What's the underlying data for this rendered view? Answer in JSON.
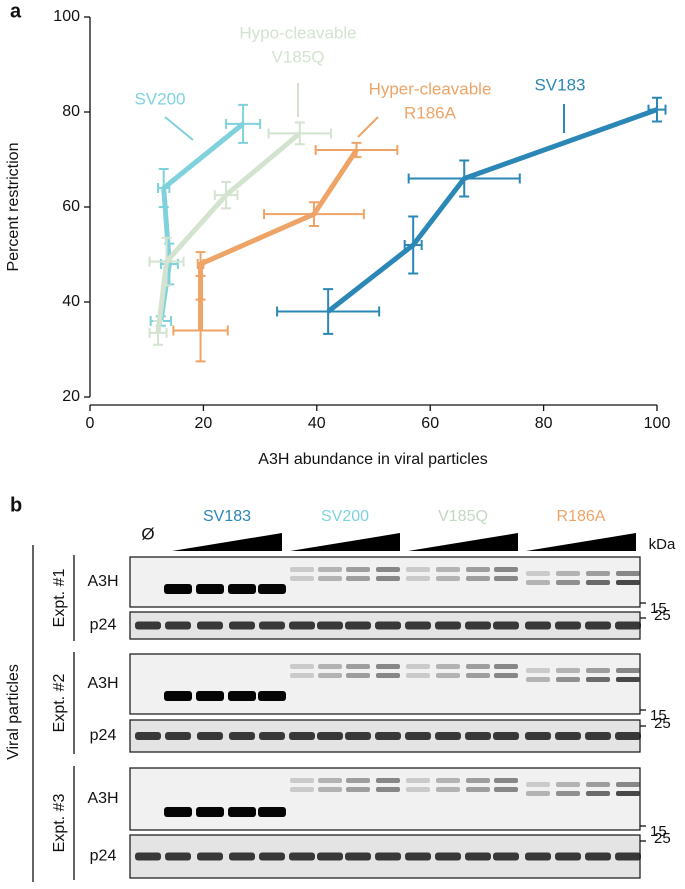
{
  "panel_label": "a",
  "chart_data": {
    "type": "line",
    "x_label": "A3H abundance in viral particles",
    "y_label": "Percent restriction",
    "xlim": [
      0,
      100
    ],
    "xticks": [
      0,
      20,
      40,
      60,
      80,
      100
    ],
    "ylim": [
      20,
      100
    ],
    "yticks": [
      20,
      40,
      60,
      80,
      100
    ],
    "annotations": [
      "Hypo-cleavable",
      "Hyper-cleavable"
    ],
    "series": [
      {
        "name": "SV183",
        "color": "#2b87b5",
        "x": [
          42,
          57,
          66,
          100
        ],
        "values": [
          38,
          52,
          66,
          80.5
        ],
        "x_err": [
          9,
          1.5,
          9.8,
          1.5
        ],
        "y_err": [
          4.7,
          6,
          3.8,
          2.5
        ]
      },
      {
        "name": "SV200",
        "color": "#7fd2dc",
        "x": [
          12.5,
          14,
          13,
          27
        ],
        "values": [
          36,
          48,
          64,
          77.5
        ],
        "x_err": [
          1.8,
          1.5,
          1,
          3
        ],
        "y_err": [
          1,
          4.3,
          4,
          4
        ]
      },
      {
        "name": "V185Q",
        "color": "#d3e3d0",
        "x": [
          12,
          13.5,
          24,
          37
        ],
        "values": [
          33.5,
          48.5,
          62.5,
          75.5
        ],
        "x_err": [
          1.5,
          3,
          2,
          5.5
        ],
        "y_err": [
          2.5,
          5,
          2.8,
          2.3
        ]
      },
      {
        "name": "R186A",
        "color": "#eea467",
        "x": [
          19.5,
          19.5,
          39.5,
          47
        ],
        "values": [
          34,
          48,
          58.5,
          72
        ],
        "x_err": [
          4.8,
          0.5,
          8.8,
          7.2
        ],
        "y_err": [
          6.5,
          2.5,
          2.5,
          1.5
        ]
      }
    ]
  },
  "blots": {
    "panel_label": "b",
    "null_lane": "Ø",
    "unit": "kDa",
    "sample": "Viral particles",
    "groups": [
      {
        "name": "SV183",
        "color": "#2b87b5"
      },
      {
        "name": "SV200",
        "color": "#7fd2dc"
      },
      {
        "name": "V185Q",
        "color": "#c5d6c3"
      },
      {
        "name": "R186A",
        "color": "#eea467"
      }
    ],
    "experiments": [
      {
        "name": "Expt. #1",
        "rows": [
          "A3H",
          "p24"
        ],
        "markers": [
          15,
          25
        ]
      },
      {
        "name": "Expt. #2",
        "rows": [
          "A3H",
          "p24"
        ],
        "markers": [
          15,
          25
        ]
      },
      {
        "name": "Expt. #3",
        "rows": [
          "A3H",
          "p24"
        ],
        "markers": [
          15,
          25
        ]
      }
    ]
  }
}
